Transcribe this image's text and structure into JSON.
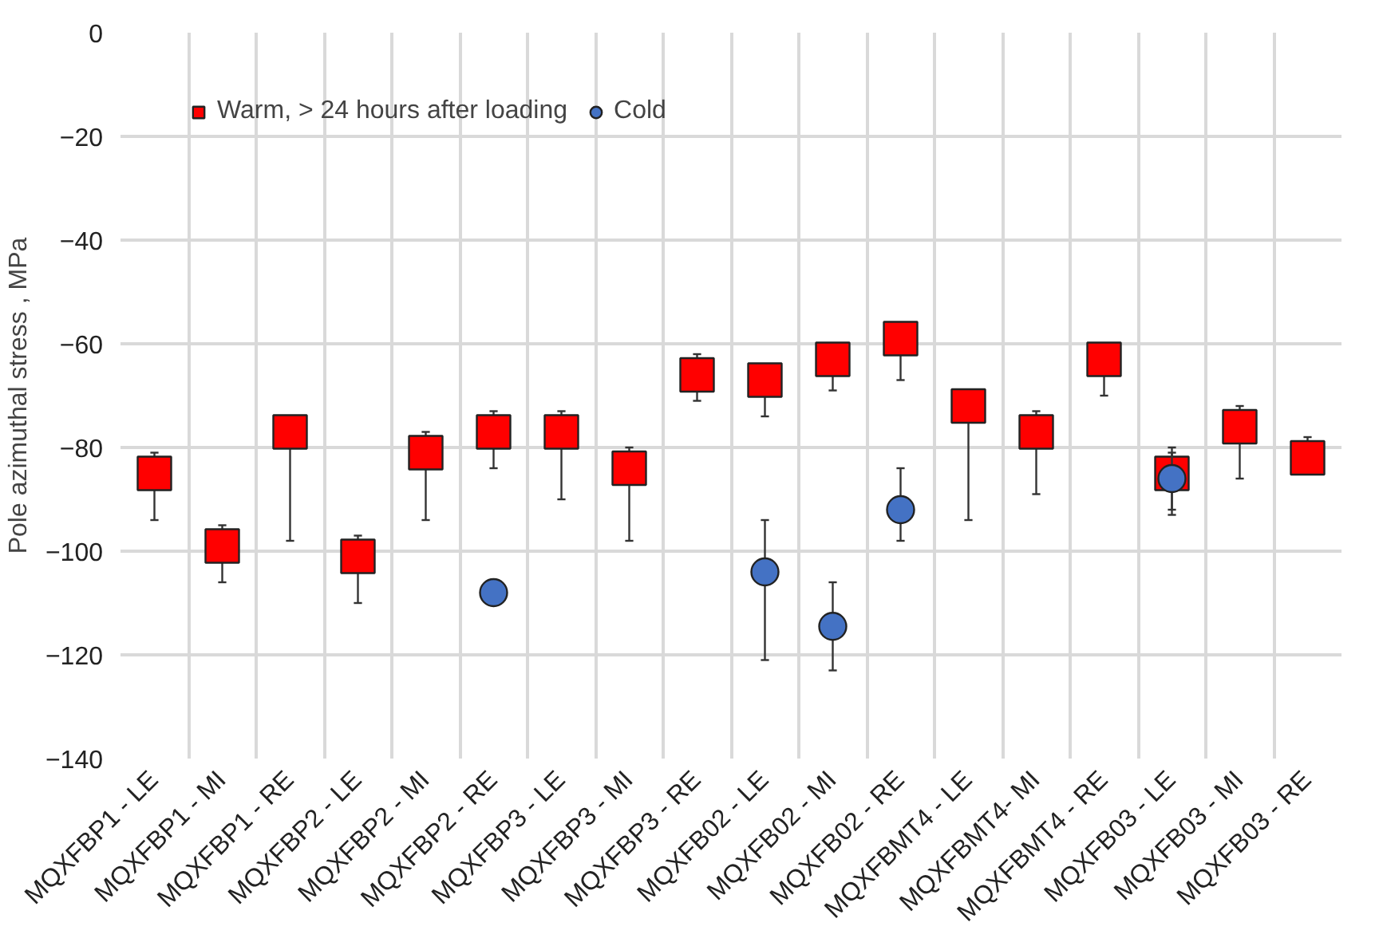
{
  "chart_data": {
    "type": "scatter",
    "ylabel": "Pole azimuthal stress , MPa",
    "categories": [
      "MQXFBP1 - LE",
      "MQXFBP1 - MI",
      "MQXFBP1 - RE",
      "MQXFBP2 - LE",
      "MQXFBP2 - MI",
      "MQXFBP2 - RE",
      "MQXFBP3 - LE",
      "MQXFBP3 - MI",
      "MQXFBP3 - RE",
      "MQXFB02 - LE",
      "MQXFB02 - MI",
      "MQXFB02 - RE",
      "MQXFBMT4 - LE",
      "MQXFBMT4- MI",
      "MQXFBMT4 - RE",
      "MQXFB03 - LE",
      "MQXFB03 - MI",
      "MQXFB03 - RE"
    ],
    "series": [
      {
        "name": "Warm, > 24 hours after loading",
        "color": "#ff0000",
        "marker": "square",
        "values": [
          -85,
          -99,
          -77,
          -101,
          -81,
          -77,
          -77,
          -84,
          -66,
          -67,
          -63,
          -59,
          -72,
          -77,
          -63,
          -85,
          -76,
          -82
        ],
        "errors": [
          [
            -94,
            -81
          ],
          [
            -106,
            -95
          ],
          [
            -98,
            -74
          ],
          [
            -110,
            -97
          ],
          [
            -94,
            -77
          ],
          [
            -84,
            -73
          ],
          [
            -90,
            -73
          ],
          [
            -98,
            -80
          ],
          [
            -71,
            -62
          ],
          [
            -74,
            -64
          ],
          [
            -69,
            -60
          ],
          [
            -67,
            -56
          ],
          [
            -94,
            -69
          ],
          [
            -89,
            -73
          ],
          [
            -70,
            -60
          ],
          [
            -92,
            -80
          ],
          [
            -86,
            -72
          ],
          [
            -82,
            -78
          ]
        ]
      },
      {
        "name": "Cold",
        "color": "#4472c4",
        "marker": "circle",
        "values": [
          null,
          null,
          null,
          null,
          null,
          -108,
          null,
          null,
          null,
          -104,
          -114.5,
          -92,
          null,
          null,
          null,
          -86,
          null,
          null
        ],
        "errors": [
          null,
          null,
          null,
          null,
          null,
          null,
          null,
          null,
          null,
          [
            -121,
            -94
          ],
          [
            -123,
            -106
          ],
          [
            -98,
            -84
          ],
          null,
          null,
          null,
          [
            -93,
            -81
          ],
          null,
          null
        ]
      }
    ],
    "ylim": [
      -140,
      0
    ],
    "yticks": [
      -140,
      -120,
      -100,
      -80,
      -60,
      -40,
      -20,
      0
    ],
    "grid": true,
    "legend": "top left"
  }
}
